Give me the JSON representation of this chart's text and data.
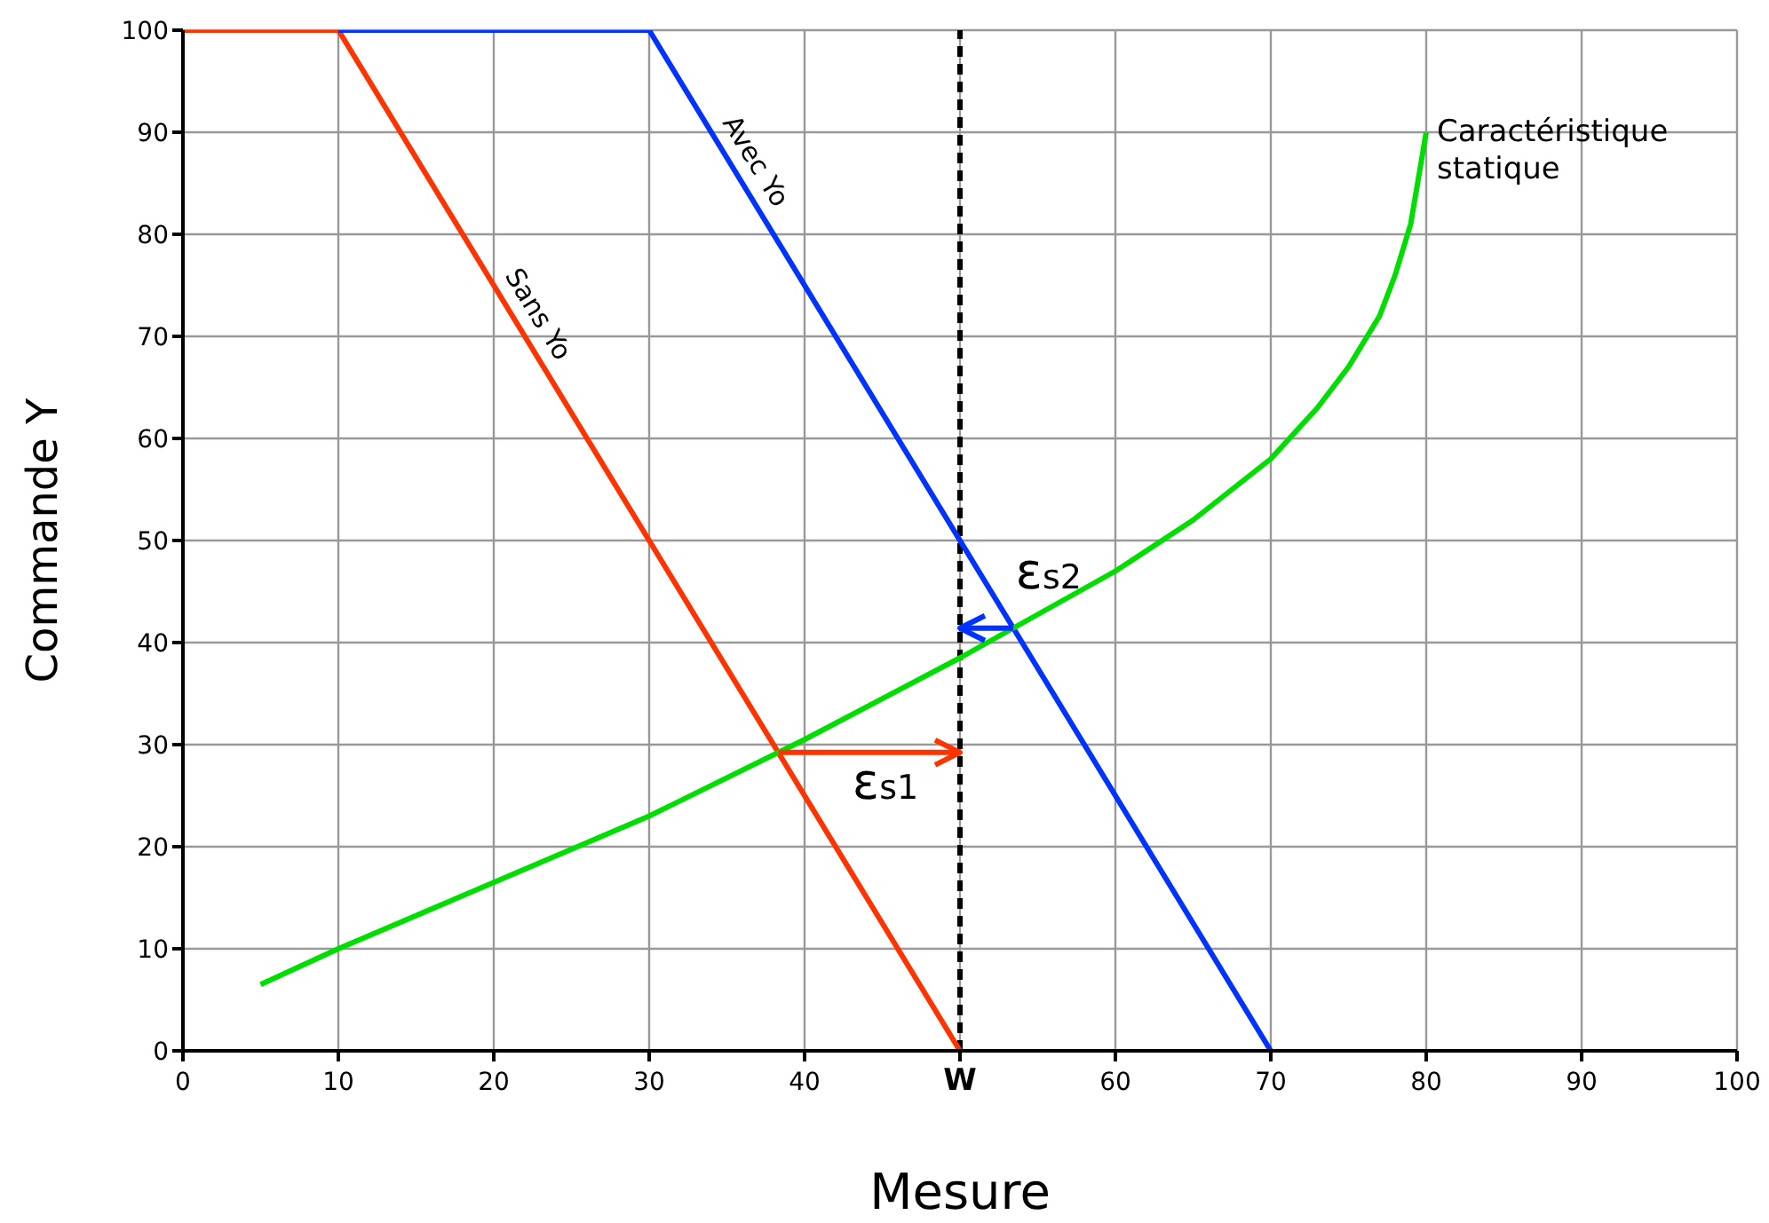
{
  "chart_data": {
    "type": "line",
    "xlabel": "Mesure",
    "ylabel": "Commande Y",
    "xlim": [
      0,
      100
    ],
    "xticks": [
      0,
      10,
      20,
      30,
      40,
      {
        "value": 50,
        "label": "W"
      },
      60,
      70,
      80,
      90,
      100
    ],
    "ylim": [
      0,
      100
    ],
    "yticks": [
      0,
      10,
      20,
      30,
      40,
      50,
      60,
      70,
      80,
      90,
      100
    ],
    "grid": true,
    "series": [
      {
        "name": "Sans Yo",
        "color": "#ff3300",
        "x": [
          0,
          10,
          50
        ],
        "values": [
          100,
          100,
          0
        ]
      },
      {
        "name": "Avec Yo",
        "color": "#0033ff",
        "x": [
          10,
          30,
          70
        ],
        "values": [
          100,
          100,
          0
        ]
      },
      {
        "name": "Caractéristique statique",
        "color": "#00dd00",
        "x": [
          5,
          10,
          20,
          30,
          40,
          50,
          60,
          65,
          70,
          73,
          75,
          77,
          78,
          79,
          80
        ],
        "values": [
          6.5,
          10,
          16.5,
          23,
          30.5,
          38.5,
          47,
          52,
          58,
          63,
          67,
          72,
          76,
          81,
          90
        ]
      }
    ],
    "ref_lines": [
      {
        "axis": "x",
        "value": 50,
        "color": "#000000",
        "line_style": "dashed"
      }
    ],
    "annotations": [
      "ε$_{s1}$",
      "ε$_{s2}$"
    ]
  }
}
